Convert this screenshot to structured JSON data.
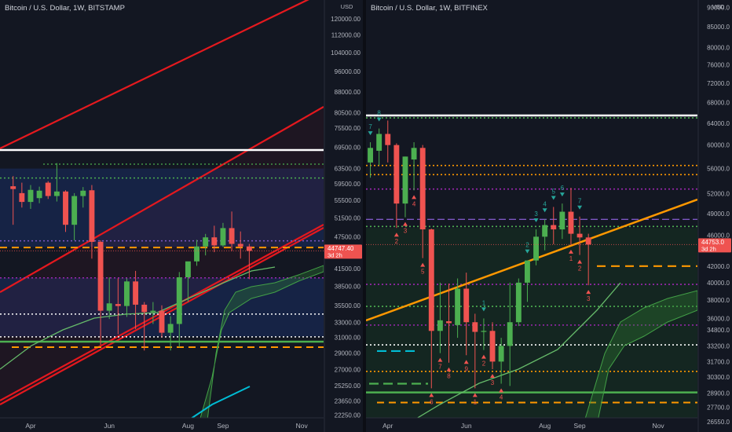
{
  "colors": {
    "background": "#131722",
    "axis_text": "#b2b5be",
    "up": "#26a69a",
    "up_body": "#4caf50",
    "down": "#ef5350",
    "grid_divider": "#2a2e39",
    "price_tag": "#ef5350",
    "white_line": "#ffffff",
    "orange": "#ff9800",
    "green_line": "#4caf50",
    "red_channel": "#e5191e",
    "purple": "#9c27b0",
    "cyan": "#00bcd4",
    "blue_zone": "#2962ff",
    "green_zone": "#1b5e20",
    "ma_line": "#66bb6a"
  },
  "chart_data": [
    {
      "type": "candlestick",
      "title": "Bitcoin / U.S. Dollar, 1W, BITSTAMP",
      "y_scale": "log",
      "ylim": [
        21000,
        130000
      ],
      "unit_label": "USD",
      "y_ticks": [
        120000,
        112000,
        104000,
        96000,
        88000,
        80500,
        75500,
        69500,
        63500,
        59500,
        55500,
        51500,
        47500,
        44500,
        41500,
        38500,
        35500,
        33000,
        31000,
        29000,
        27000,
        25250,
        23650,
        22250
      ],
      "y_tick_labels": [
        "120000.00",
        "112000.00",
        "104000.00",
        "96000.00",
        "88000.00",
        "80500.00",
        "75500.00",
        "69500.00",
        "63500.00",
        "59500.00",
        "55500.00",
        "51500.00",
        "47500.00",
        "44500.00",
        "41500.00",
        "38500.00",
        "35500.00",
        "33000.00",
        "31000.00",
        "29000.00",
        "27000.00",
        "25250.00",
        "23650.00",
        "22250.00"
      ],
      "x_labels": [
        {
          "label": "Apr",
          "week": 2
        },
        {
          "label": "Jun",
          "week": 11
        },
        {
          "label": "Aug",
          "week": 20
        },
        {
          "label": "Sep",
          "week": 24
        },
        {
          "label": "Nov",
          "week": 33
        }
      ],
      "week_range": [
        -1.5,
        35.5
      ],
      "last_price": "44747.40",
      "countdown": "3d 2h",
      "candles": [
        {
          "w": 0,
          "o": 58900,
          "h": 61500,
          "l": 50000,
          "c": 58200
        },
        {
          "w": 1,
          "o": 57200,
          "h": 59800,
          "l": 53800,
          "c": 55100
        },
        {
          "w": 2,
          "o": 55100,
          "h": 59200,
          "l": 53500,
          "c": 58000
        },
        {
          "w": 3,
          "o": 56000,
          "h": 58800,
          "l": 54800,
          "c": 57800
        },
        {
          "w": 4,
          "o": 59800,
          "h": 60200,
          "l": 55800,
          "c": 56500
        },
        {
          "w": 5,
          "o": 56500,
          "h": 65000,
          "l": 55200,
          "c": 57600
        },
        {
          "w": 6,
          "o": 57600,
          "h": 57900,
          "l": 48500,
          "c": 50000
        },
        {
          "w": 7,
          "o": 50000,
          "h": 57200,
          "l": 46800,
          "c": 56500
        },
        {
          "w": 8,
          "o": 56500,
          "h": 58700,
          "l": 53800,
          "c": 57800
        },
        {
          "w": 9,
          "o": 57900,
          "h": 59200,
          "l": 43300,
          "c": 46500
        },
        {
          "w": 10,
          "o": 46500,
          "h": 46800,
          "l": 30000,
          "c": 34700
        },
        {
          "w": 11,
          "o": 34700,
          "h": 40000,
          "l": 33500,
          "c": 35800
        },
        {
          "w": 12,
          "o": 35700,
          "h": 39800,
          "l": 31400,
          "c": 35400
        },
        {
          "w": 13,
          "o": 35400,
          "h": 39800,
          "l": 33800,
          "c": 39300
        },
        {
          "w": 14,
          "o": 39300,
          "h": 41100,
          "l": 32100,
          "c": 35600
        },
        {
          "w": 15,
          "o": 35600,
          "h": 36000,
          "l": 29300,
          "c": 34500
        },
        {
          "w": 16,
          "o": 34500,
          "h": 36000,
          "l": 32800,
          "c": 34700
        },
        {
          "w": 17,
          "o": 34700,
          "h": 35500,
          "l": 31000,
          "c": 31600
        },
        {
          "w": 18,
          "o": 31600,
          "h": 33900,
          "l": 29300,
          "c": 32800
        },
        {
          "w": 19,
          "o": 32800,
          "h": 40900,
          "l": 29700,
          "c": 40000
        },
        {
          "w": 20,
          "o": 40000,
          "h": 42600,
          "l": 36000,
          "c": 42800
        },
        {
          "w": 21,
          "o": 42800,
          "h": 46900,
          "l": 42000,
          "c": 45600
        },
        {
          "w": 22,
          "o": 45600,
          "h": 48100,
          "l": 43900,
          "c": 47400
        },
        {
          "w": 23,
          "o": 47400,
          "h": 49800,
          "l": 44500,
          "c": 45800
        },
        {
          "w": 24,
          "o": 45800,
          "h": 50400,
          "l": 45500,
          "c": 49300
        },
        {
          "w": 25,
          "o": 49300,
          "h": 52900,
          "l": 44700,
          "c": 46100
        },
        {
          "w": 26,
          "o": 46100,
          "h": 48600,
          "l": 43300,
          "c": 45600
        },
        {
          "w": 27,
          "o": 45600,
          "h": 46100,
          "l": 39700,
          "c": 44747
        }
      ]
    },
    {
      "type": "candlestick",
      "title": "Bitcoin / U.S. Dollar, 1W, BITFINEX",
      "y_scale": "log",
      "ylim": [
        26000,
        92000
      ],
      "unit_label": "USD",
      "y_ticks": [
        90000,
        85000,
        80000,
        76000,
        72000,
        68000,
        64000,
        60000,
        56000,
        52000,
        49000,
        46000,
        42000,
        40000,
        38000,
        36000,
        34800,
        33200,
        31700,
        30300,
        28900,
        27700,
        26550
      ],
      "y_tick_labels": [
        "90000.0",
        "85000.0",
        "80000.0",
        "76000.0",
        "72000.0",
        "68000.0",
        "64000.0",
        "60000.0",
        "56000.0",
        "52000.0",
        "49000.0",
        "46000.0",
        "42000.0",
        "40000.0",
        "38000.0",
        "36000.0",
        "34800.0",
        "33200.0",
        "31700.0",
        "30300.0",
        "28900.0",
        "27700.0",
        "26550.0"
      ],
      "x_labels": [
        {
          "label": "Apr",
          "week": 2
        },
        {
          "label": "Jun",
          "week": 11
        },
        {
          "label": "Aug",
          "week": 20
        },
        {
          "label": "Sep",
          "week": 24
        },
        {
          "label": "Nov",
          "week": 33
        }
      ],
      "week_range": [
        -0.5,
        37.5
      ],
      "last_price": "44753.0",
      "countdown": "3d 2h",
      "candles": [
        {
          "w": 0,
          "o": 57000,
          "h": 60500,
          "l": 54500,
          "c": 59500
        },
        {
          "w": 1,
          "o": 59000,
          "h": 63000,
          "l": 56500,
          "c": 62000
        },
        {
          "w": 2,
          "o": 62000,
          "h": 64500,
          "l": 57000,
          "c": 60000
        },
        {
          "w": 3,
          "o": 60000,
          "h": 60300,
          "l": 47000,
          "c": 50500
        },
        {
          "w": 4,
          "o": 50500,
          "h": 58000,
          "l": 48500,
          "c": 58000
        },
        {
          "w": 5,
          "o": 57500,
          "h": 60500,
          "l": 52500,
          "c": 59500
        },
        {
          "w": 6,
          "o": 59500,
          "h": 60000,
          "l": 43000,
          "c": 46800
        },
        {
          "w": 7,
          "o": 46800,
          "h": 46900,
          "l": 29300,
          "c": 34700
        },
        {
          "w": 8,
          "o": 34700,
          "h": 40000,
          "l": 32500,
          "c": 35800
        },
        {
          "w": 9,
          "o": 35700,
          "h": 39900,
          "l": 31600,
          "c": 35500
        },
        {
          "w": 10,
          "o": 35300,
          "h": 40500,
          "l": 34000,
          "c": 39300
        },
        {
          "w": 11,
          "o": 39300,
          "h": 41200,
          "l": 32300,
          "c": 35600
        },
        {
          "w": 12,
          "o": 35600,
          "h": 36500,
          "l": 29300,
          "c": 34600
        },
        {
          "w": 13,
          "o": 34600,
          "h": 36000,
          "l": 32800,
          "c": 34700
        },
        {
          "w": 14,
          "o": 34700,
          "h": 35600,
          "l": 31000,
          "c": 31700
        },
        {
          "w": 15,
          "o": 31700,
          "h": 34000,
          "l": 29700,
          "c": 33200
        },
        {
          "w": 16,
          "o": 33200,
          "h": 40000,
          "l": 29500,
          "c": 35600
        },
        {
          "w": 17,
          "o": 35600,
          "h": 40500,
          "l": 35200,
          "c": 40000
        },
        {
          "w": 18,
          "o": 40000,
          "h": 42700,
          "l": 37800,
          "c": 42700
        },
        {
          "w": 19,
          "o": 42700,
          "h": 46800,
          "l": 42100,
          "c": 45800
        },
        {
          "w": 20,
          "o": 45800,
          "h": 48200,
          "l": 44000,
          "c": 47400
        },
        {
          "w": 21,
          "o": 47400,
          "h": 50000,
          "l": 44800,
          "c": 46800
        },
        {
          "w": 22,
          "o": 46800,
          "h": 50500,
          "l": 45500,
          "c": 49300
        },
        {
          "w": 23,
          "o": 49300,
          "h": 52900,
          "l": 44700,
          "c": 46200
        },
        {
          "w": 24,
          "o": 46200,
          "h": 48600,
          "l": 43400,
          "c": 45700
        },
        {
          "w": 25,
          "o": 45700,
          "h": 46200,
          "l": 39700,
          "c": 44753
        }
      ],
      "markers_up": [
        {
          "w": 0,
          "label": "7"
        },
        {
          "w": 1,
          "label": "8"
        },
        {
          "w": 13,
          "label": "1"
        },
        {
          "w": 18,
          "label": "2"
        },
        {
          "w": 19,
          "label": "3"
        },
        {
          "w": 20,
          "label": "4"
        },
        {
          "w": 21,
          "label": "5"
        },
        {
          "w": 22,
          "label": "6"
        },
        {
          "w": 24,
          "label": "7"
        }
      ],
      "markers_down": [
        {
          "w": 3,
          "label": "2"
        },
        {
          "w": 4,
          "label": "3"
        },
        {
          "w": 5,
          "label": "4"
        },
        {
          "w": 6,
          "label": "5"
        },
        {
          "w": 7,
          "label": "6"
        },
        {
          "w": 8,
          "label": "7"
        },
        {
          "w": 9,
          "label": "8"
        },
        {
          "w": 11,
          "label": "9"
        },
        {
          "w": 12,
          "label": "1"
        },
        {
          "w": 13,
          "label": "2"
        },
        {
          "w": 14,
          "label": "3"
        },
        {
          "w": 15,
          "label": "4"
        },
        {
          "w": 23,
          "label": "1"
        },
        {
          "w": 24,
          "label": "2"
        },
        {
          "w": 25,
          "label": "3"
        }
      ]
    }
  ]
}
